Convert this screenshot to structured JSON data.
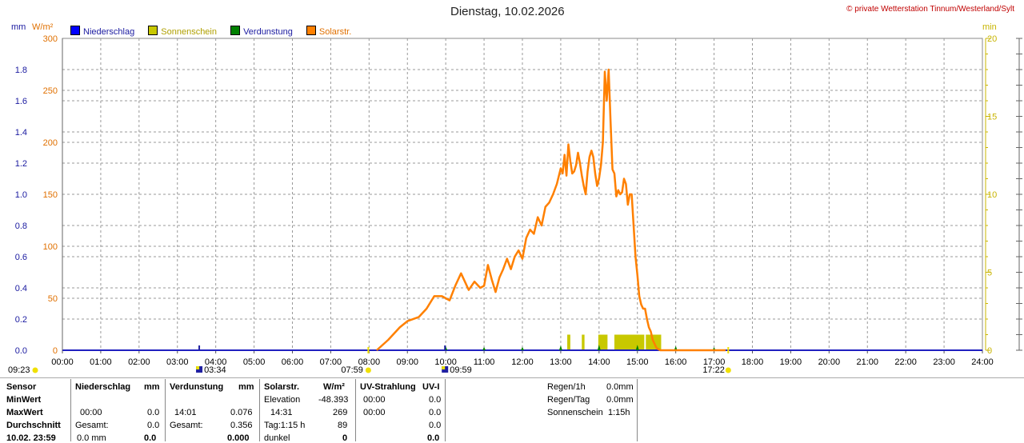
{
  "header": {
    "title": "Dienstag, 10.02.2026",
    "copyright": "© private Wetterstation Tinnum/Westerland/Sylt",
    "unit_left_mm": "mm",
    "unit_left_wm2": "W/m²",
    "unit_right_min": "min"
  },
  "legend": [
    {
      "label": "Niederschlag",
      "color": "#0000ff"
    },
    {
      "label": "Sonnenschein",
      "color": "#c8c800"
    },
    {
      "label": "Verdunstung",
      "color": "#008000"
    },
    {
      "label": "Solarstr.",
      "color": "#ff8000"
    }
  ],
  "chart_data": {
    "type": "line",
    "title": "Dienstag, 10.02.2026",
    "x_tick_labels": [
      "00:00",
      "01:00",
      "02:00",
      "03:00",
      "04:00",
      "05:00",
      "06:00",
      "07:00",
      "08:00",
      "09:00",
      "10:00",
      "11:00",
      "12:00",
      "13:00",
      "14:00",
      "15:00",
      "16:00",
      "17:00",
      "18:00",
      "19:00",
      "20:00",
      "21:00",
      "22:00",
      "23:00",
      "24:00"
    ],
    "xlim": [
      0,
      24
    ],
    "y_axes": {
      "mm": {
        "ticks": [
          "0.0",
          "0.2",
          "0.4",
          "0.6",
          "0.8",
          "1.0",
          "1.2",
          "1.4",
          "1.6",
          "1.8"
        ],
        "ylim": [
          0,
          2.0
        ]
      },
      "wm2": {
        "ticks": [
          "0",
          "50",
          "100",
          "150",
          "200",
          "250",
          "300"
        ],
        "ylim": [
          0,
          300
        ]
      },
      "min": {
        "ticks": [
          "0",
          "5",
          "10",
          "15",
          "20"
        ],
        "ylim": [
          0,
          20
        ]
      }
    },
    "grid": true,
    "series": [
      {
        "name": "Solarstr.",
        "axis": "wm2",
        "color": "#ff8000",
        "x": [
          8.2,
          8.5,
          8.8,
          9.0,
          9.3,
          9.5,
          9.7,
          9.9,
          10.1,
          10.25,
          10.4,
          10.5,
          10.6,
          10.75,
          10.9,
          11.0,
          11.1,
          11.2,
          11.3,
          11.4,
          11.5,
          11.6,
          11.7,
          11.8,
          11.9,
          12.0,
          12.1,
          12.2,
          12.3,
          12.4,
          12.5,
          12.6,
          12.7,
          12.8,
          12.9,
          13.0,
          13.05,
          13.1,
          13.15,
          13.2,
          13.25,
          13.3,
          13.35,
          13.4,
          13.45,
          13.5,
          13.55,
          13.6,
          13.65,
          13.7,
          13.75,
          13.8,
          13.85,
          13.9,
          13.95,
          14.0,
          14.05,
          14.1,
          14.15,
          14.2,
          14.25,
          14.3,
          14.35,
          14.4,
          14.45,
          14.5,
          14.55,
          14.6,
          14.65,
          14.7,
          14.75,
          14.8,
          14.85,
          14.9,
          14.95,
          15.0,
          15.05,
          15.1,
          15.15,
          15.2,
          15.25,
          15.3,
          15.35,
          15.4,
          15.45,
          15.5,
          15.6,
          15.7,
          15.8,
          15.9,
          16.0,
          16.1,
          16.2,
          16.4,
          16.6,
          16.8,
          17.0,
          17.1,
          17.2,
          17.3
        ],
        "values": [
          0,
          10,
          22,
          28,
          32,
          40,
          52,
          52,
          48,
          62,
          74,
          66,
          58,
          66,
          60,
          62,
          82,
          68,
          56,
          70,
          78,
          88,
          78,
          90,
          96,
          88,
          108,
          116,
          112,
          128,
          120,
          138,
          142,
          150,
          160,
          175,
          170,
          188,
          168,
          198,
          182,
          170,
          172,
          178,
          190,
          180,
          168,
          158,
          150,
          172,
          186,
          192,
          186,
          170,
          158,
          165,
          178,
          200,
          268,
          240,
          270,
          220,
          174,
          170,
          148,
          154,
          150,
          152,
          165,
          160,
          140,
          150,
          150,
          120,
          90,
          72,
          52,
          44,
          40,
          40,
          30,
          22,
          18,
          10,
          6,
          2,
          0,
          0,
          0,
          0,
          0,
          0,
          0,
          0,
          0,
          0,
          0,
          0,
          0,
          0
        ]
      },
      {
        "name": "Sonnenschein",
        "axis": "min",
        "color": "#c8c800",
        "bars": [
          [
            13.17,
            13.25,
            1
          ],
          [
            13.55,
            13.62,
            1
          ],
          [
            13.98,
            14.22,
            1
          ],
          [
            14.4,
            15.18,
            1
          ],
          [
            15.22,
            15.62,
            1
          ]
        ]
      },
      {
        "name": "Verdunstung",
        "axis": "mm",
        "color": "#008000",
        "markers": [
          10.0,
          11.0,
          12.0,
          13.0,
          14.0,
          15.0,
          16.0,
          17.0
        ],
        "values": [
          0.01,
          0.006,
          0.006,
          0.016,
          0.02,
          0.02,
          0.012,
          0.004
        ]
      }
    ],
    "markers_below_axis": [
      {
        "label": "09:23",
        "x": 0
      },
      {
        "label": "03:34",
        "x": 3.57
      },
      {
        "label": "07:59",
        "x": 7.98
      },
      {
        "label": "09:59",
        "x": 9.98
      },
      {
        "label": "17:22",
        "x": 17.37
      }
    ]
  },
  "table": {
    "row_labels": [
      "Sensor",
      "MinWert",
      "MaxWert",
      "Durchschnitt",
      "10.02. 23:59"
    ],
    "niederschlag": {
      "head": "Niederschlag",
      "unit": "mm",
      "max_time": "00:00",
      "max_val": "0.0",
      "gesamt_label": "Gesamt:",
      "gesamt_val": "0.0",
      "last": "0.0 mm",
      "last_val": "0.0"
    },
    "verdunstung": {
      "head": "Verdunstung",
      "unit": "mm",
      "max_time": "14:01",
      "max_val": "0.076",
      "gesamt_label": "Gesamt:",
      "gesamt_val": "0.356",
      "last_val": "0.000"
    },
    "solar": {
      "head": "Solarstr.",
      "unit": "W/m²",
      "elev_label": "Elevation",
      "elev_val": "-48.393",
      "max_time": "14:31",
      "max_val": "269",
      "tag_label": "Tag:1:15 h",
      "tag_val": "89",
      "dunkel_label": "dunkel",
      "dunkel_val": "0"
    },
    "uv": {
      "head": "UV-Strahlung",
      "unit": "UV-I",
      "min_time": "00:00",
      "min_val": "0.0",
      "max_time": "00:00",
      "max_val": "0.0",
      "avg_val": "0.0",
      "last_val": "0.0"
    },
    "summary": [
      {
        "label": "Regen/1h",
        "value": "0.0mm"
      },
      {
        "label": "Regen/Tag",
        "value": "0.0mm"
      },
      {
        "label": "Sonnenschein",
        "value": "1:15h"
      }
    ]
  }
}
